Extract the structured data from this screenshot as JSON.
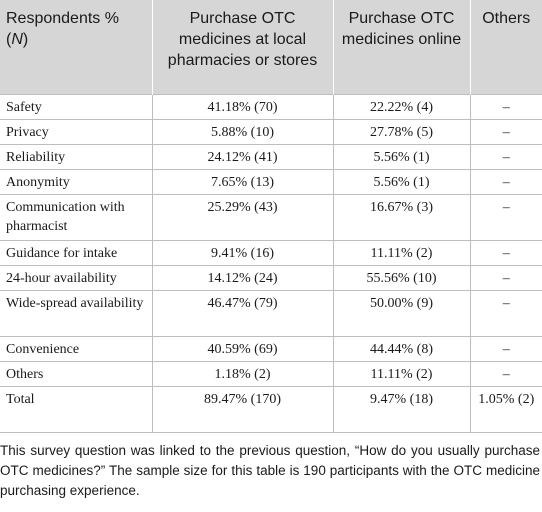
{
  "table": {
    "headers": {
      "col0_text": "Respondents %",
      "col0_open": "(",
      "col0_n": "N",
      "col0_close": ")",
      "col1": "Purchase OTC medicines at local pharmacies or stores",
      "col2": "Purchase OTC medicines online",
      "col3": "Others"
    },
    "rows": [
      {
        "label": "Safety",
        "local": "41.18% (70)",
        "online": "22.22% (4)",
        "others": "–"
      },
      {
        "label": "Privacy",
        "local": "5.88% (10)",
        "online": "27.78% (5)",
        "others": "–"
      },
      {
        "label": "Reliability",
        "local": "24.12% (41)",
        "online": "5.56% (1)",
        "others": "–"
      },
      {
        "label": "Anonymity",
        "local": "7.65% (13)",
        "online": "5.56% (1)",
        "others": "–"
      },
      {
        "label": "Communication with pharmacist",
        "local": "25.29% (43)",
        "online": "16.67% (3)",
        "others": "–"
      },
      {
        "label": "Guidance for intake",
        "local": "9.41% (16)",
        "online": "11.11% (2)",
        "others": "–"
      },
      {
        "label": "24-hour availability",
        "local": "14.12% (24)",
        "online": "55.56% (10)",
        "others": "–"
      },
      {
        "label": "Wide-spread availability",
        "local": "46.47% (79)",
        "online": "50.00% (9)",
        "others": "–"
      },
      {
        "label": "Convenience",
        "local": "40.59% (69)",
        "online": "44.44% (8)",
        "others": "–"
      },
      {
        "label": "Others",
        "local": "1.18% (2)",
        "online": "11.11% (2)",
        "others": "–"
      },
      {
        "label": "Total",
        "local": "89.47% (170)",
        "online": "9.47% (18)",
        "others": "1.05% (2)"
      }
    ]
  },
  "footnote": "This survey question was linked to the previous question, “How do you usually purchase OTC medicines?” The sample size for this table is 190 participants with the OTC medicine purchasing experience."
}
